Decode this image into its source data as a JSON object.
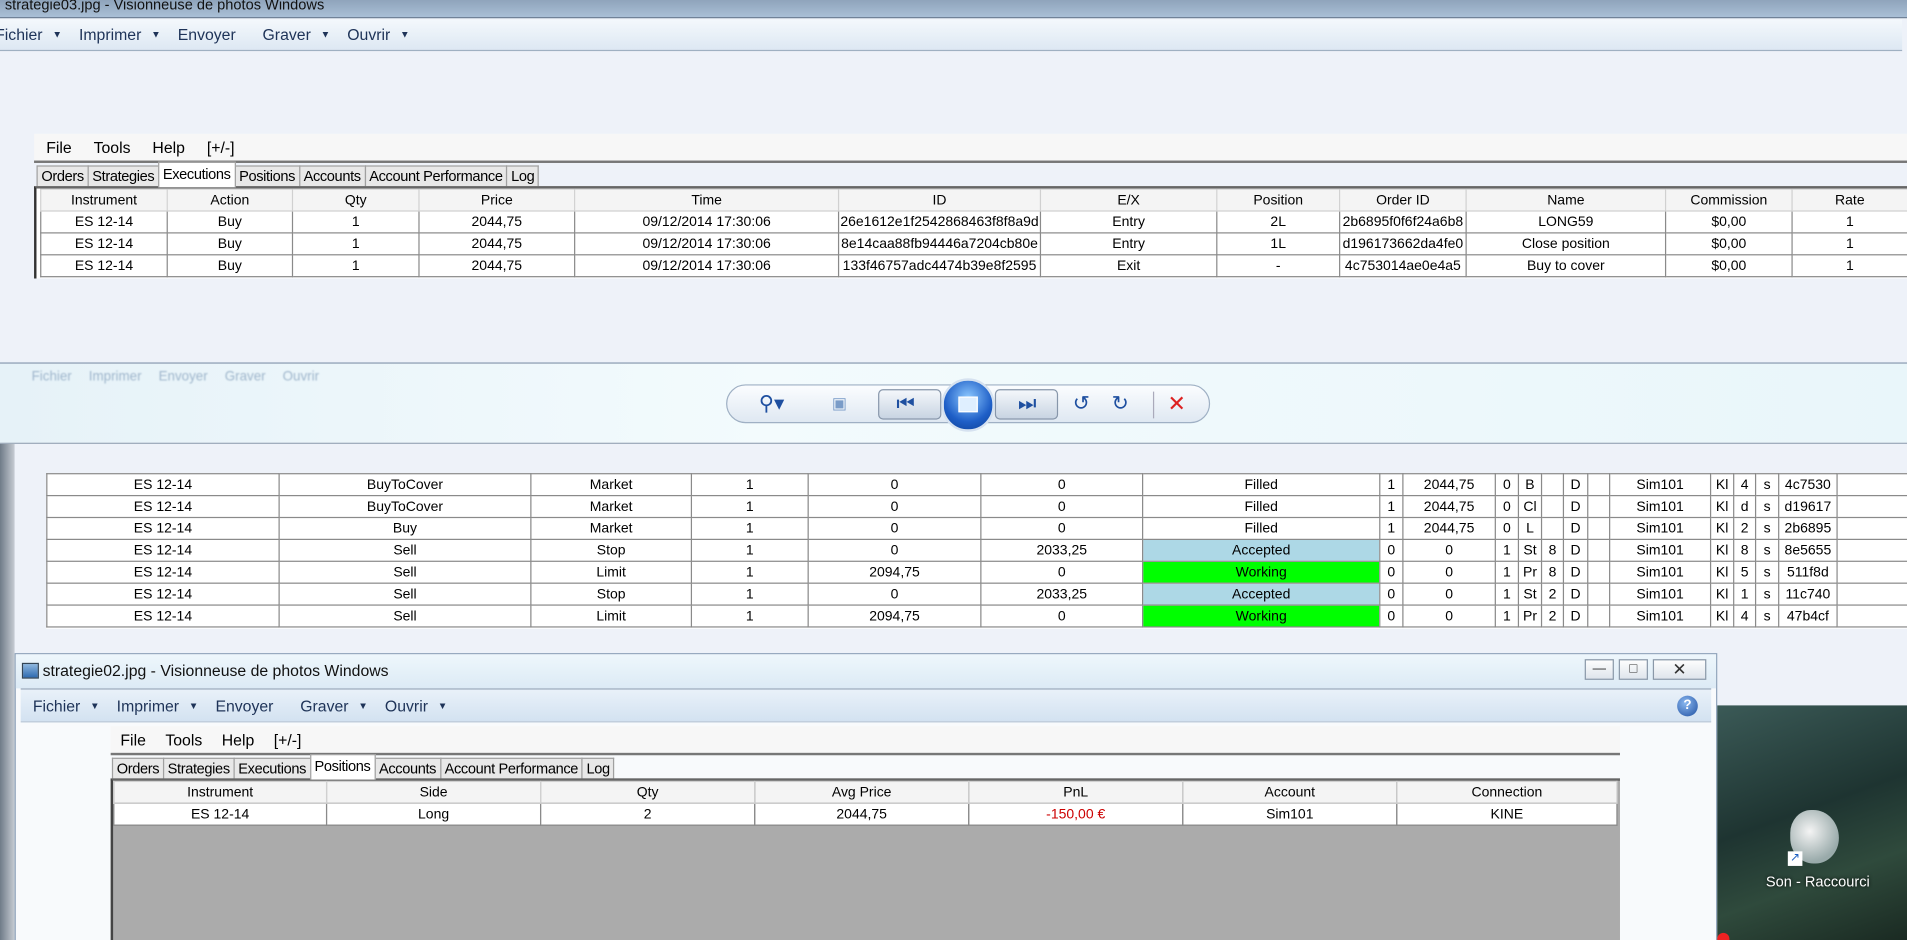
{
  "top_window": {
    "title": "strategie03.jpg - Visionneuse de photos Windows",
    "menu": [
      {
        "label": "Fichier",
        "dropdown": true
      },
      {
        "label": "Imprimer",
        "dropdown": true
      },
      {
        "label": "Envoyer",
        "dropdown": false
      },
      {
        "label": "Graver",
        "dropdown": true
      },
      {
        "label": "Ouvrir",
        "dropdown": true
      }
    ],
    "app_menu": [
      "File",
      "Tools",
      "Help",
      "[+/-]"
    ],
    "tabs": [
      "Orders",
      "Strategies",
      "Executions",
      "Positions",
      "Accounts",
      "Account Performance",
      "Log"
    ],
    "active_tab": "Executions",
    "executions": {
      "columns": [
        "Instrument",
        "Action",
        "Qty",
        "Price",
        "Time",
        "ID",
        "E/X",
        "Position",
        "Order ID",
        "Name",
        "Commission",
        "Rate"
      ],
      "rows": [
        [
          "ES 12-14",
          "Buy",
          "1",
          "2044,75",
          "09/12/2014 17:30:06",
          "26e1612e1f2542868463f8f8a9d",
          "Entry",
          "2L",
          "2b6895f0f6f24a6b8",
          "LONG59",
          "$0,00",
          "1"
        ],
        [
          "ES 12-14",
          "Buy",
          "1",
          "2044,75",
          "09/12/2014 17:30:06",
          "8e14caa88fb94446a7204cb80e",
          "Entry",
          "1L",
          "d196173662da4fe0",
          "Close position",
          "$0,00",
          "1"
        ],
        [
          "ES 12-14",
          "Buy",
          "1",
          "2044,75",
          "09/12/2014 17:30:06",
          "133f46757adc4474b39e8f2595",
          "Exit",
          "-",
          "4c753014ae0e4a5",
          "Buy to cover",
          "$0,00",
          "1"
        ]
      ]
    }
  },
  "viewer_toolbar": {
    "ghost_menu": [
      "Fichier",
      "Imprimer",
      "Envoyer",
      "Graver",
      "Ouvrir"
    ],
    "buttons": [
      "zoom-icon",
      "fit-window-icon",
      "previous-icon",
      "slideshow-icon",
      "next-icon",
      "rotate-left-icon",
      "rotate-right-icon",
      "delete-icon"
    ]
  },
  "orders": {
    "rows": [
      [
        "ES 12-14",
        "BuyToCover",
        "Market",
        "1",
        "0",
        "0",
        "Filled",
        "1",
        "2044,75",
        "0",
        "B",
        "",
        "D",
        "",
        "Sim101",
        "Kl",
        "4",
        "s",
        "4c7530",
        ""
      ],
      [
        "ES 12-14",
        "BuyToCover",
        "Market",
        "1",
        "0",
        "0",
        "Filled",
        "1",
        "2044,75",
        "0",
        "Cl",
        "",
        "D",
        "",
        "Sim101",
        "Kl",
        "d",
        "s",
        "d19617",
        ""
      ],
      [
        "ES 12-14",
        "Buy",
        "Market",
        "1",
        "0",
        "0",
        "Filled",
        "1",
        "2044,75",
        "0",
        "L",
        "",
        "D",
        "",
        "Sim101",
        "Kl",
        "2",
        "s",
        "2b6895",
        ""
      ],
      [
        "ES 12-14",
        "Sell",
        "Stop",
        "1",
        "0",
        "2033,25",
        "Accepted",
        "0",
        "0",
        "1",
        "St",
        "8",
        "D",
        "",
        "Sim101",
        "Kl",
        "8",
        "s",
        "8e5655",
        ""
      ],
      [
        "ES 12-14",
        "Sell",
        "Limit",
        "1",
        "2094,75",
        "0",
        "Working",
        "0",
        "0",
        "1",
        "Pr",
        "8",
        "D",
        "",
        "Sim101",
        "Kl",
        "5",
        "s",
        "511f8d",
        ""
      ],
      [
        "ES 12-14",
        "Sell",
        "Stop",
        "1",
        "0",
        "2033,25",
        "Accepted",
        "0",
        "0",
        "1",
        "St",
        "2",
        "D",
        "",
        "Sim101",
        "Kl",
        "1",
        "s",
        "11c740",
        ""
      ],
      [
        "ES 12-14",
        "Sell",
        "Limit",
        "1",
        "2094,75",
        "0",
        "Working",
        "0",
        "0",
        "1",
        "Pr",
        "2",
        "D",
        "",
        "Sim101",
        "Kl",
        "4",
        "s",
        "47b4cf",
        ""
      ]
    ],
    "status_colors": {
      "Accepted": "#add8e6",
      "Working": "#00ff00",
      "Filled": "#ffffff"
    }
  },
  "bottom_window": {
    "title": "strategie02.jpg - Visionneuse de photos Windows",
    "menu": [
      {
        "label": "Fichier",
        "dropdown": true
      },
      {
        "label": "Imprimer",
        "dropdown": true
      },
      {
        "label": "Envoyer",
        "dropdown": false
      },
      {
        "label": "Graver",
        "dropdown": true
      },
      {
        "label": "Ouvrir",
        "dropdown": true
      }
    ],
    "app_menu": [
      "File",
      "Tools",
      "Help",
      "[+/-]"
    ],
    "tabs": [
      "Orders",
      "Strategies",
      "Executions",
      "Positions",
      "Accounts",
      "Account Performance",
      "Log"
    ],
    "active_tab": "Positions",
    "positions": {
      "columns": [
        "Instrument",
        "Side",
        "Qty",
        "Avg Price",
        "PnL",
        "Account",
        "Connection"
      ],
      "rows": [
        [
          "ES 12-14",
          "Long",
          "2",
          "2044,75",
          "-150,00 €",
          "Sim101",
          "KINE"
        ]
      ],
      "pnl_color": "#cc0000"
    }
  },
  "desktop": {
    "icon_label": "Son - Raccourci"
  }
}
